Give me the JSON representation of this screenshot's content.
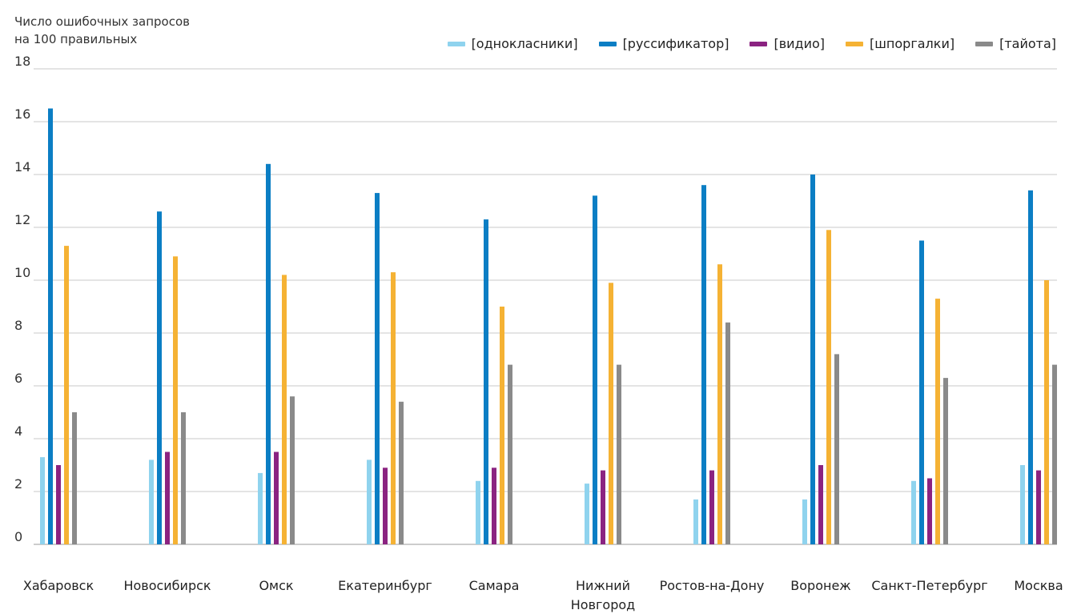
{
  "ylabel_lines": [
    "Число ошибочных запросов",
    "на 100 правильных"
  ],
  "colors": {
    "grid": "#c8c8c8",
    "axis": "#9a9a9a",
    "text": "#333333"
  },
  "chart_data": {
    "type": "bar",
    "title": "",
    "xlabel": "",
    "ylabel": "Число ошибочных запросов на 100 правильных",
    "ylim": [
      0,
      18
    ],
    "yticks": [
      0,
      2,
      4,
      6,
      8,
      10,
      12,
      14,
      16,
      18
    ],
    "grid": true,
    "legend_position": "top-right",
    "categories": [
      [
        "Хабаровск"
      ],
      [
        "Новосибирск"
      ],
      [
        "Омск"
      ],
      [
        "Екатеринбург"
      ],
      [
        "Самара"
      ],
      [
        "Нижний",
        "Новгород"
      ],
      [
        "Ростов-на-Дону"
      ],
      [
        "Воронеж"
      ],
      [
        "Санкт-Петербург"
      ],
      [
        "Москва"
      ]
    ],
    "series": [
      {
        "name": "[однокласники]",
        "color": "#8fd3ee",
        "values": [
          3.3,
          3.2,
          2.7,
          3.2,
          2.4,
          2.3,
          1.7,
          1.7,
          2.4,
          3.0
        ]
      },
      {
        "name": "[руссификатор]",
        "color": "#0b7ec4",
        "values": [
          16.5,
          12.6,
          14.4,
          13.3,
          12.3,
          13.2,
          13.6,
          14.0,
          11.5,
          13.4
        ]
      },
      {
        "name": "[видио]",
        "color": "#8b2381",
        "values": [
          3.0,
          3.5,
          3.5,
          2.9,
          2.9,
          2.8,
          2.8,
          3.0,
          2.5,
          2.8
        ]
      },
      {
        "name": "[шпоргалки]",
        "color": "#f5b234",
        "values": [
          11.3,
          10.9,
          10.2,
          10.3,
          9.0,
          9.9,
          10.6,
          11.9,
          9.3,
          10.0
        ]
      },
      {
        "name": "[тайота]",
        "color": "#8a8a8a",
        "values": [
          5.0,
          5.0,
          5.6,
          5.4,
          6.8,
          6.8,
          8.4,
          7.2,
          6.3,
          6.8
        ]
      }
    ]
  }
}
